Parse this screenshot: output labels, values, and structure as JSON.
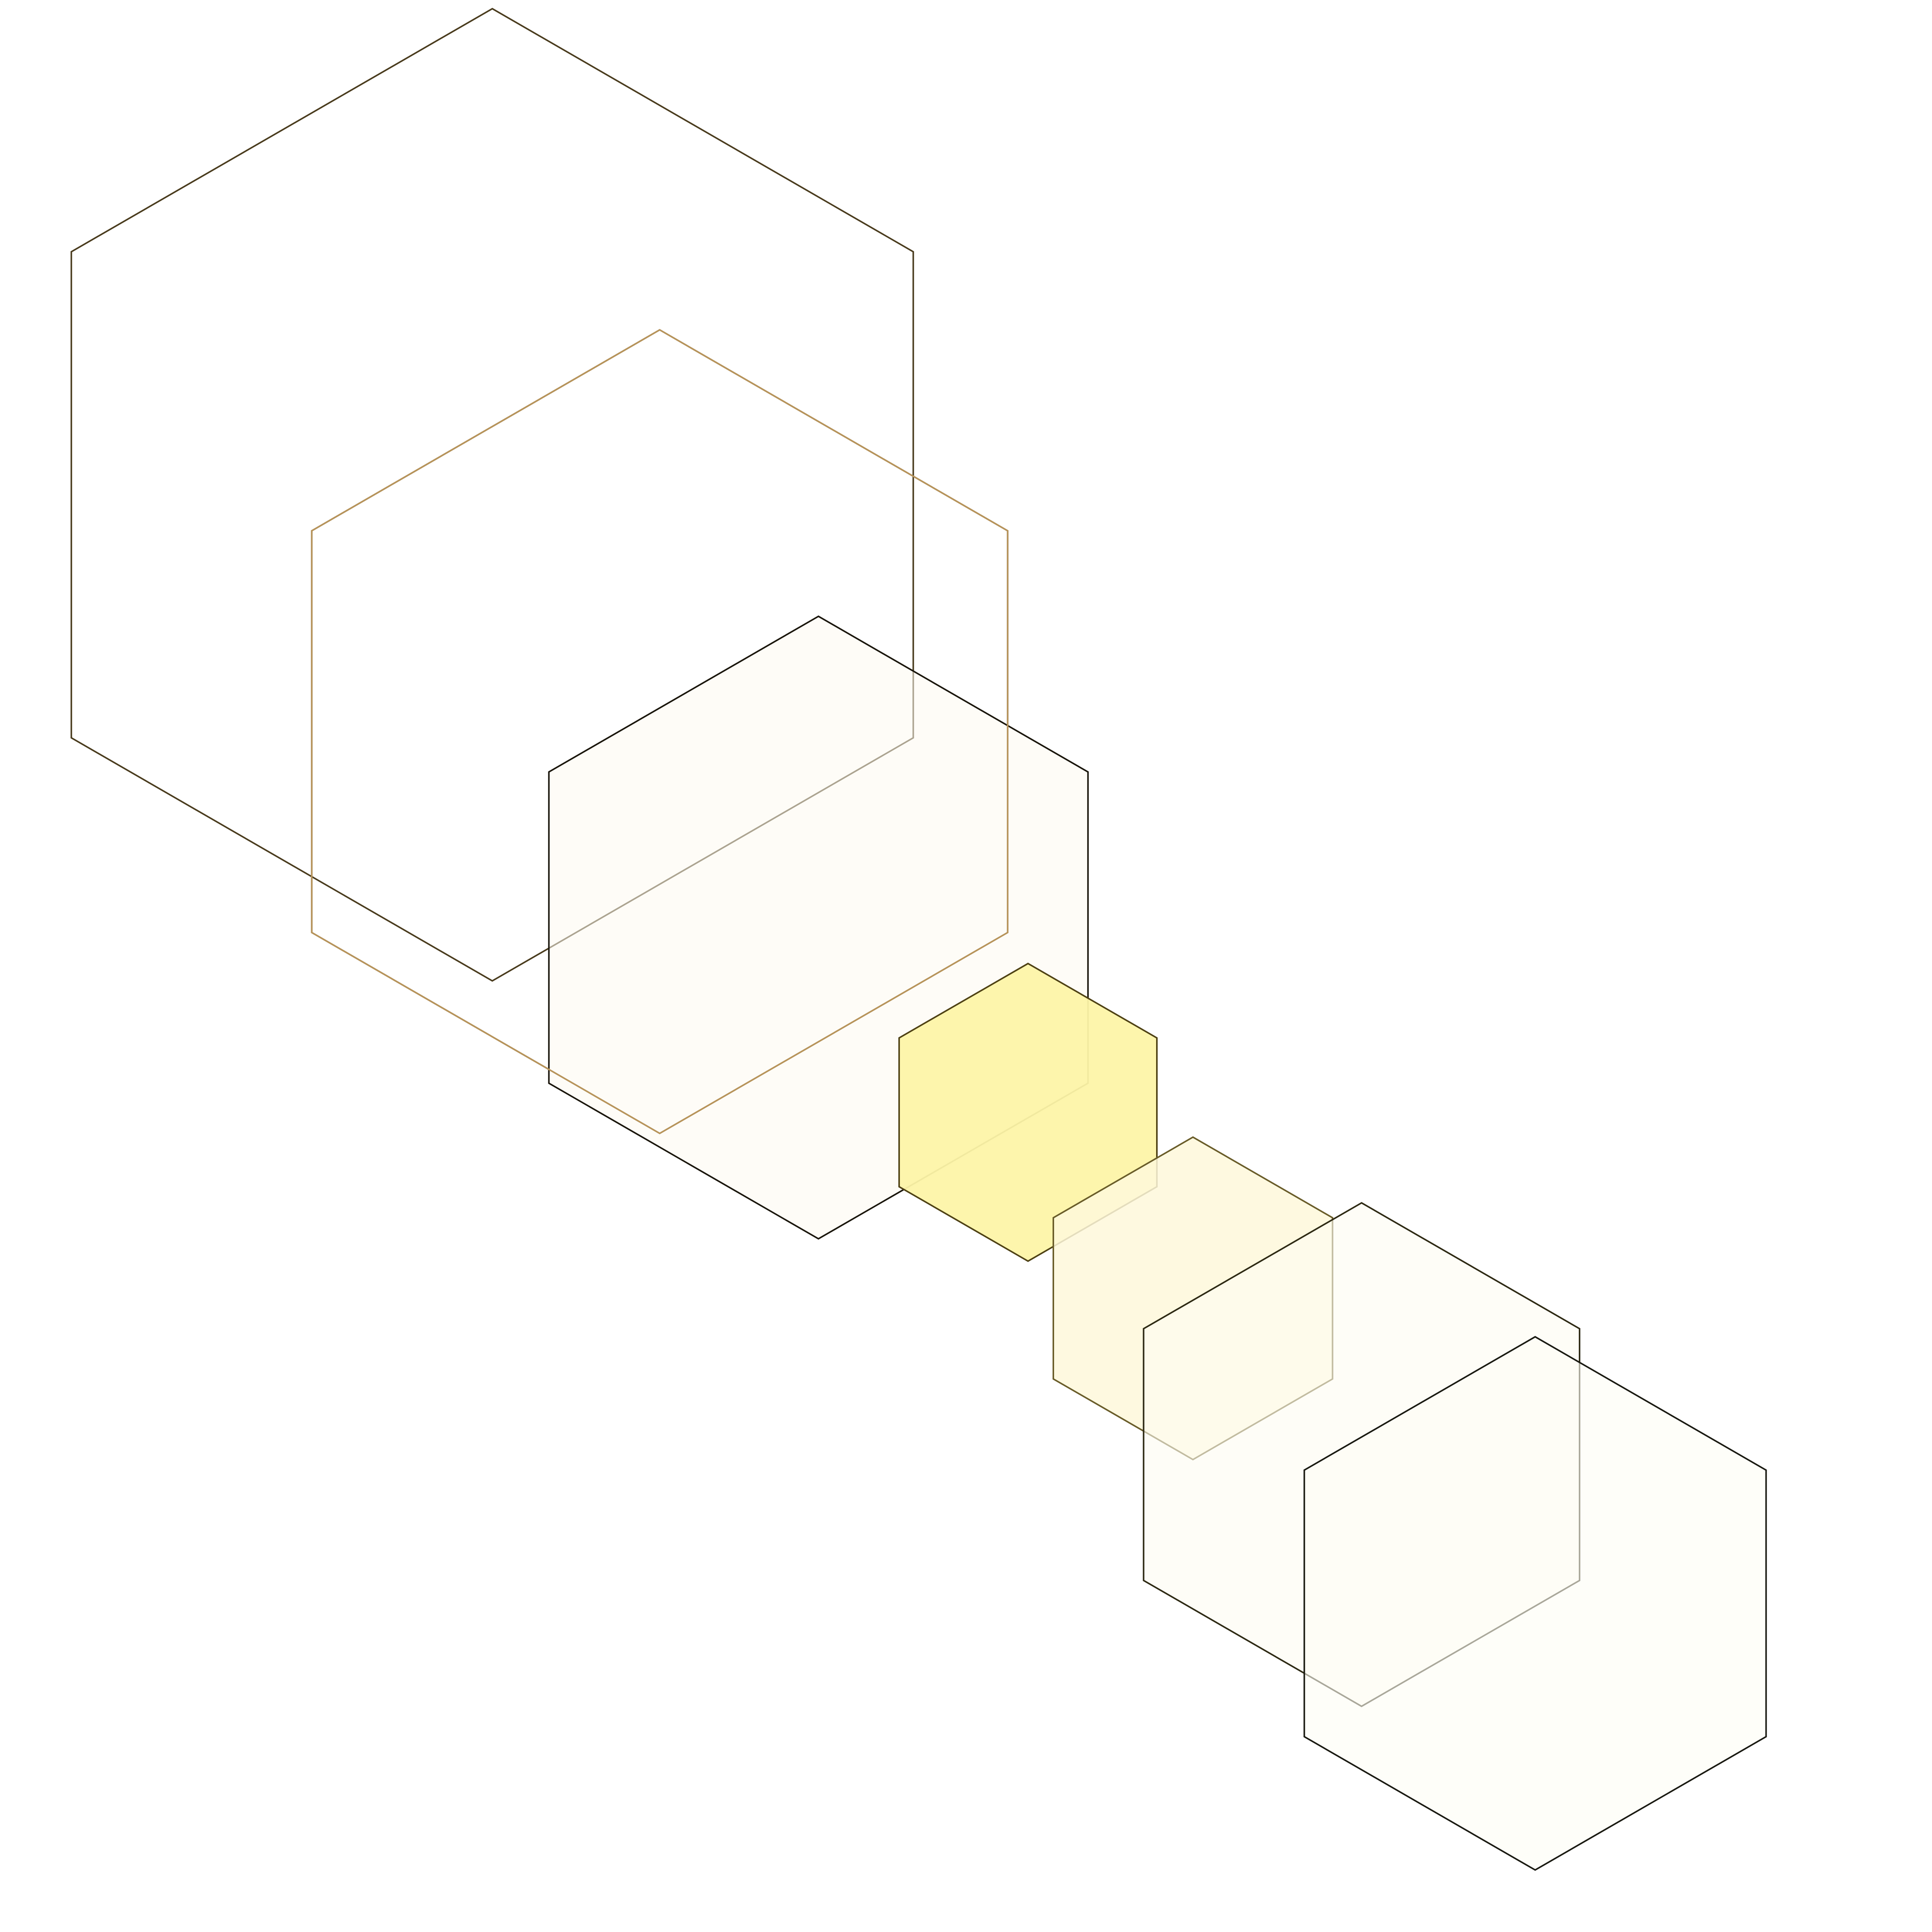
{
  "hexagons": [
    {
      "name": "hexagon-1",
      "fill": "#ffffff",
      "fill_opacity": 0,
      "stroke": "#4a3c1e",
      "stroke_opacity": 1
    },
    {
      "name": "hexagon-2",
      "fill": "#ffffff",
      "fill_opacity": 0,
      "stroke": "#3f3418",
      "stroke_opacity": 1
    },
    {
      "name": "hexagon-3",
      "fill": "#fdfaf1",
      "fill_opacity": 0.55,
      "stroke": "#1a160c",
      "stroke_opacity": 1
    },
    {
      "name": "hexagon-4",
      "fill": "#ffffff",
      "fill_opacity": 0,
      "stroke": "#b8945a",
      "stroke_opacity": 1
    },
    {
      "name": "hexagon-5",
      "fill": "#fdf4a8",
      "fill_opacity": 0.95,
      "stroke": "#4f4215",
      "stroke_opacity": 1
    },
    {
      "name": "hexagon-6",
      "fill": "#fef8da",
      "fill_opacity": 0.85,
      "stroke": "#6a5d2a",
      "stroke_opacity": 1
    },
    {
      "name": "hexagon-7",
      "fill": "#fefcf2",
      "fill_opacity": 0.6,
      "stroke": "#2e2a14",
      "stroke_opacity": 1
    },
    {
      "name": "hexagon-8",
      "fill": "#fefdf5",
      "fill_opacity": 0.6,
      "stroke": "#1a1a12",
      "stroke_opacity": 1
    }
  ]
}
